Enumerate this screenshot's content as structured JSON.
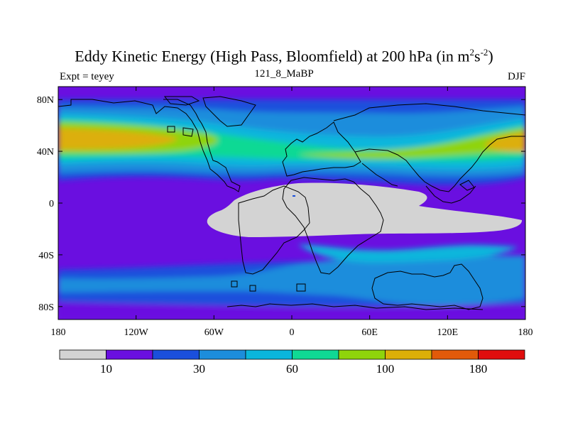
{
  "title": {
    "main": "Eddy Kinetic Energy (High Pass, Bloomfield) at 200 hPa (in m",
    "sup1": "2",
    "mid": "s",
    "sup2": "-2",
    "end": ")"
  },
  "left_subtitle": "Expt = teyey",
  "center_subtitle": "121_8_MaBP",
  "right_subtitle": "DJF",
  "map": {
    "lat_ticks": [
      {
        "value": 80,
        "label": "80N"
      },
      {
        "value": 40,
        "label": "40N"
      },
      {
        "value": 0,
        "label": "0"
      },
      {
        "value": -40,
        "label": "40S"
      },
      {
        "value": -80,
        "label": "80S"
      }
    ],
    "lon_ticks": [
      {
        "value": -180,
        "label": "180"
      },
      {
        "value": -120,
        "label": "120W"
      },
      {
        "value": -60,
        "label": "60W"
      },
      {
        "value": 0,
        "label": "0"
      },
      {
        "value": 60,
        "label": "60E"
      },
      {
        "value": 120,
        "label": "120E"
      },
      {
        "value": 180,
        "label": "180"
      }
    ]
  },
  "colorbar": {
    "colors": [
      "#d3d3d3",
      "#6a0fe0",
      "#1a4fdc",
      "#1c8ddc",
      "#0ab6dc",
      "#10d994",
      "#8fd40c",
      "#dcaf08",
      "#e25a0a",
      "#e00d0d"
    ],
    "labels": [
      "10",
      "30",
      "60",
      "100",
      "180"
    ]
  }
}
